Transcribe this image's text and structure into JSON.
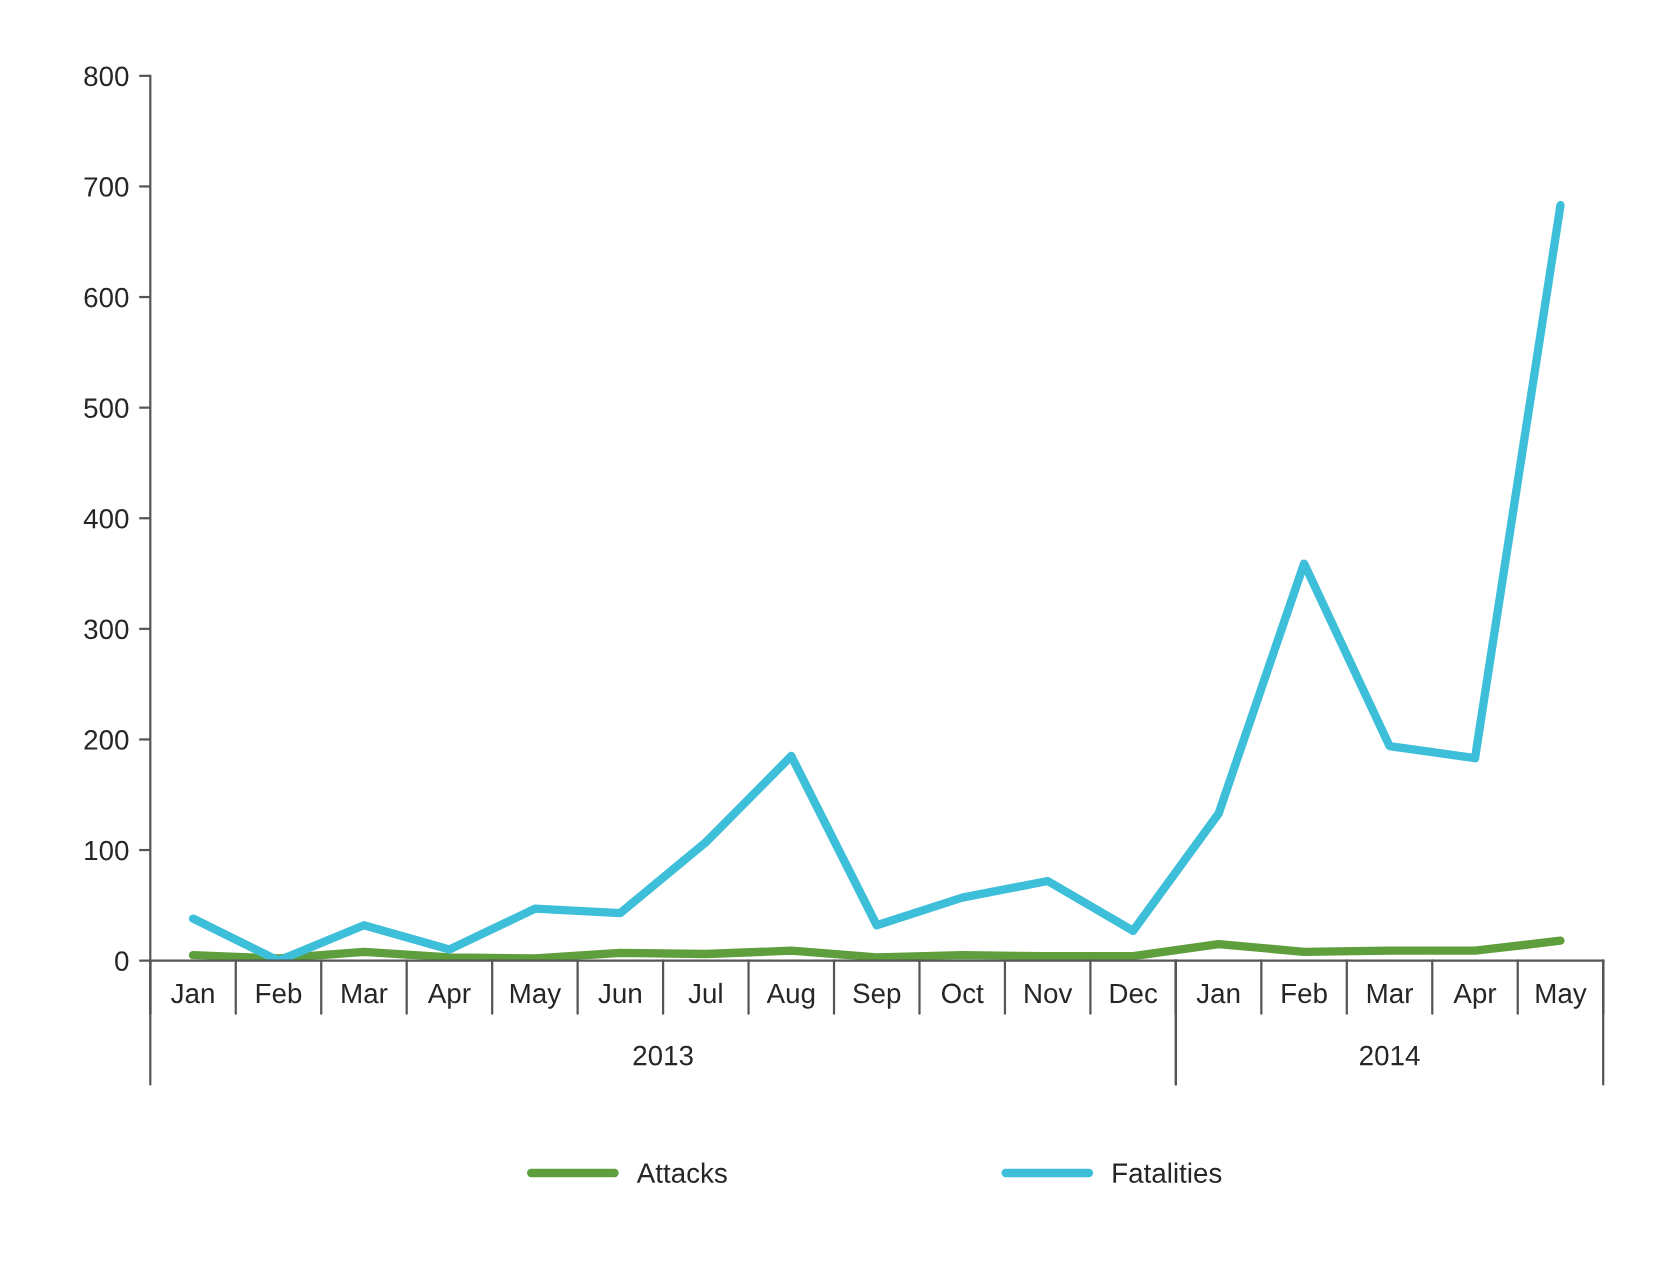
{
  "chart_data": {
    "type": "line",
    "categories": [
      "Jan",
      "Feb",
      "Mar",
      "Apr",
      "May",
      "Jun",
      "Jul",
      "Aug",
      "Sep",
      "Oct",
      "Nov",
      "Dec",
      "Jan",
      "Feb",
      "Mar",
      "Apr",
      "May"
    ],
    "series": [
      {
        "name": "Attacks",
        "color": "#5e9e3c",
        "values": [
          5,
          2,
          8,
          3,
          2,
          7,
          6,
          9,
          3,
          5,
          4,
          4,
          15,
          8,
          9,
          9,
          18
        ]
      },
      {
        "name": "Fatalities",
        "color": "#3dbfd9",
        "values": [
          38,
          0,
          32,
          10,
          47,
          43,
          107,
          185,
          32,
          57,
          72,
          27,
          133,
          359,
          194,
          183,
          683
        ]
      }
    ],
    "ylim": [
      0,
      800
    ],
    "yticks": [
      0,
      100,
      200,
      300,
      400,
      500,
      600,
      700,
      800
    ],
    "annotations": [
      "2013",
      "2014"
    ],
    "grid": false,
    "legend": "bottom",
    "marker": "none",
    "line_style": "solid"
  }
}
